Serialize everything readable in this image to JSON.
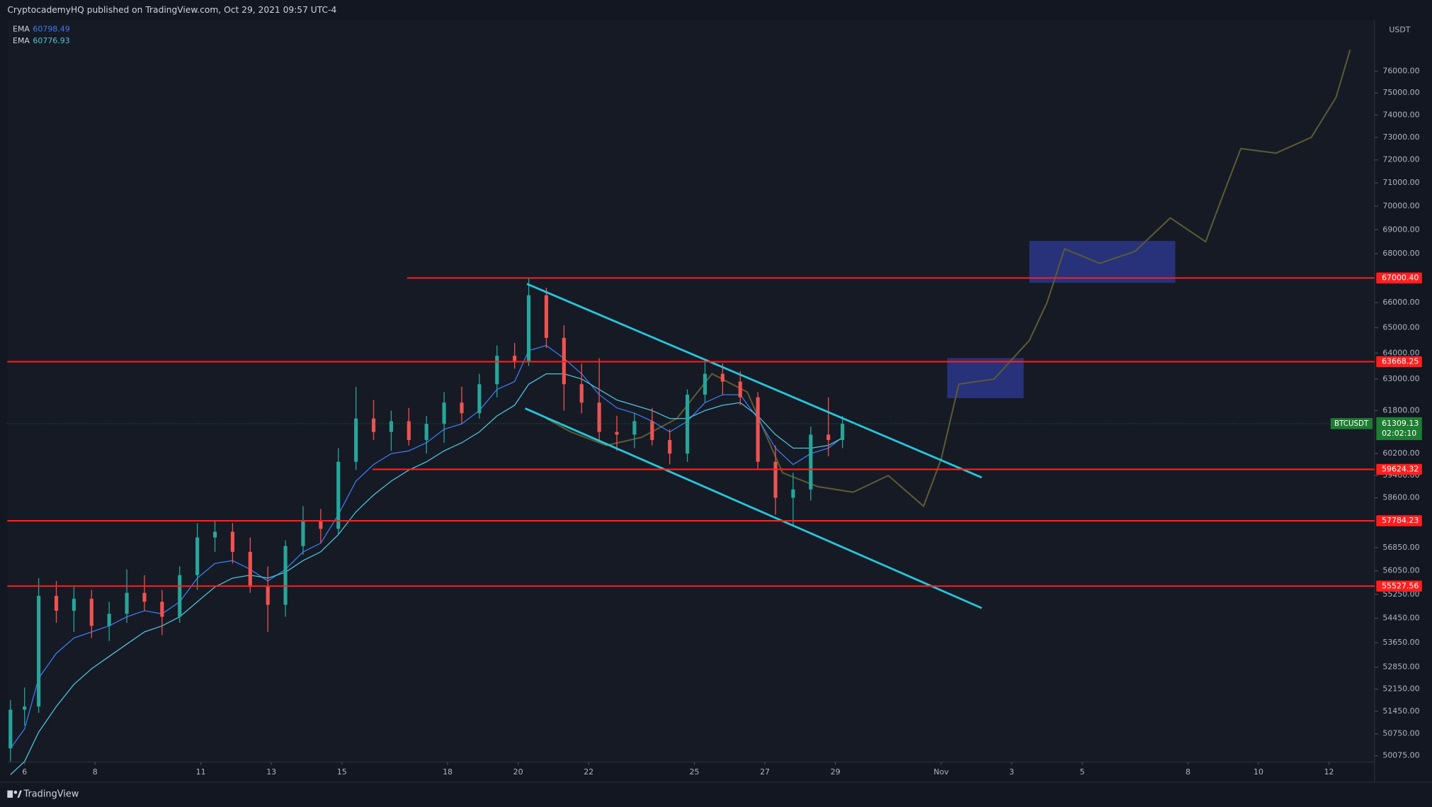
{
  "chart_data": {
    "type": "candlestick",
    "header": "CryptocademyHQ published on TradingView.com, Oct 29, 2021 09:57 UTC-4",
    "brand": "TradingView",
    "currency": "USDT",
    "log": true,
    "xlim": [
      5.51,
      44.29
    ],
    "ylim": [
      49880,
      78400
    ],
    "xticks": [
      6,
      8,
      11,
      13,
      15,
      18,
      20,
      22,
      25,
      27,
      29,
      {
        "value": 32,
        "label": "Nov"
      },
      {
        "value": 34,
        "label": "3"
      },
      {
        "value": 36,
        "label": "5"
      },
      {
        "value": 39,
        "label": "8"
      },
      {
        "value": 41,
        "label": "10"
      },
      {
        "value": 43,
        "label": "12"
      }
    ],
    "yticks": [
      {
        "value": 76000,
        "label": "76000.00"
      },
      {
        "value": 75000,
        "label": "75000.00"
      },
      {
        "value": 74000,
        "label": "74000.00"
      },
      {
        "value": 73000,
        "label": "73000.00"
      },
      {
        "value": 72000,
        "label": "72000.00"
      },
      {
        "value": 71000,
        "label": "71000.00"
      },
      {
        "value": 70000,
        "label": "70000.00"
      },
      {
        "value": 69000,
        "label": "69000.00"
      },
      {
        "value": 68000,
        "label": "68000.00"
      },
      {
        "value": 66000,
        "label": "66000.00"
      },
      {
        "value": 65000,
        "label": "65000.00"
      },
      {
        "value": 64000,
        "label": "64000.00"
      },
      {
        "value": 63000,
        "label": "63000.00"
      },
      {
        "value": 61800,
        "label": "61800.00"
      },
      {
        "value": 60200,
        "label": "60200.00"
      },
      {
        "value": 59400,
        "label": "59400.00"
      },
      {
        "value": 58600,
        "label": "58600.00"
      },
      {
        "value": 56850,
        "label": "56850.00"
      },
      {
        "value": 56050,
        "label": "56050.00"
      },
      {
        "value": 55250,
        "label": "55250.00"
      },
      {
        "value": 54450,
        "label": "54450.00"
      },
      {
        "value": 53650,
        "label": "53650.00"
      },
      {
        "value": 52850,
        "label": "52850.00"
      },
      {
        "value": 52150,
        "label": "52150.00"
      },
      {
        "value": 51450,
        "label": "51450.00"
      },
      {
        "value": 50750,
        "label": "50750.00"
      },
      {
        "value": 50075,
        "label": "50075.00"
      }
    ],
    "up_color": "#26a69a",
    "down_color": "#ef5350",
    "candles": {
      "x": [
        5.6,
        6.0,
        6.4,
        6.9,
        7.4,
        7.9,
        8.4,
        8.9,
        9.4,
        9.9,
        10.4,
        10.9,
        11.4,
        11.9,
        12.4,
        12.9,
        13.4,
        13.9,
        14.4,
        14.9,
        15.4,
        15.9,
        16.4,
        16.9,
        17.4,
        17.9,
        18.4,
        18.9,
        19.4,
        19.9,
        20.3,
        20.8,
        21.3,
        21.8,
        22.3,
        22.8,
        23.3,
        23.8,
        24.3,
        24.8,
        25.3,
        25.8,
        26.3,
        26.8,
        27.3,
        27.8,
        28.3,
        28.8,
        29.2
      ],
      "open": [
        50300,
        51500,
        51600,
        55200,
        54700,
        55100,
        54200,
        54600,
        55300,
        55000,
        54500,
        55900,
        57200,
        57400,
        56700,
        55500,
        54900,
        56900,
        57800,
        57500,
        59900,
        61500,
        61000,
        61400,
        60700,
        61300,
        62100,
        61700,
        62800,
        63900,
        63700,
        66300,
        64600,
        62800,
        62100,
        61000,
        60900,
        61400,
        60700,
        60200,
        62400,
        63200,
        62900,
        62300,
        59900,
        58600,
        58900,
        60900,
        60700
      ],
      "high": [
        51800,
        52200,
        55800,
        55700,
        55500,
        55400,
        55000,
        56100,
        55900,
        55400,
        56200,
        57700,
        57800,
        57700,
        57200,
        56200,
        57100,
        58300,
        58200,
        60400,
        62700,
        62200,
        61800,
        61900,
        61600,
        62500,
        62700,
        63200,
        64300,
        64400,
        67000,
        66600,
        65100,
        63600,
        63800,
        61600,
        61700,
        61900,
        61100,
        62600,
        63700,
        63600,
        63300,
        62500,
        60500,
        59500,
        61200,
        62300,
        61600
      ],
      "low": [
        49900,
        51000,
        51400,
        54300,
        54000,
        53800,
        53700,
        54300,
        54700,
        53900,
        54300,
        55400,
        56700,
        56300,
        55300,
        54000,
        54500,
        56600,
        57000,
        57300,
        59600,
        60700,
        60300,
        60500,
        60200,
        60600,
        61300,
        61500,
        62300,
        63400,
        63500,
        64200,
        61800,
        61700,
        60700,
        60300,
        60400,
        60500,
        59800,
        59900,
        62100,
        62400,
        62000,
        59600,
        58000,
        57600,
        58500,
        60100,
        60400
      ],
      "close": [
        51500,
        51600,
        55200,
        54700,
        55100,
        54200,
        54600,
        55300,
        55000,
        54500,
        55900,
        57200,
        57400,
        56700,
        55500,
        54900,
        56900,
        57800,
        57500,
        59900,
        61500,
        61000,
        61400,
        60700,
        61300,
        62100,
        61700,
        62800,
        63900,
        63700,
        66300,
        64600,
        62800,
        62100,
        61000,
        60900,
        61400,
        60700,
        60200,
        62400,
        63200,
        62900,
        62300,
        59900,
        58600,
        58900,
        60900,
        60700,
        61300
      ]
    },
    "ema": [
      {
        "name": "EMA",
        "last_label": "60798.49",
        "color": "#3b7bf0",
        "values": [
          50300,
          50900,
          52500,
          53300,
          53800,
          54000,
          54200,
          54500,
          54700,
          54600,
          55000,
          55800,
          56300,
          56400,
          56100,
          55700,
          56100,
          56700,
          57000,
          58000,
          59200,
          59800,
          60200,
          60300,
          60600,
          61100,
          61300,
          61800,
          62600,
          62900,
          64100,
          64300,
          63800,
          63200,
          62400,
          61900,
          61700,
          61400,
          61000,
          61400,
          62100,
          62400,
          62400,
          61500,
          60400,
          59800,
          60200,
          60400,
          60800
        ]
      },
      {
        "name": "EMA",
        "last_label": "60776.93",
        "color": "#4fc3d9",
        "values": [
          49500,
          49900,
          50800,
          51600,
          52300,
          52800,
          53200,
          53600,
          54000,
          54200,
          54500,
          55000,
          55500,
          55800,
          55900,
          55800,
          56000,
          56400,
          56700,
          57300,
          58100,
          58700,
          59200,
          59600,
          59900,
          60300,
          60600,
          61000,
          61600,
          62000,
          62800,
          63200,
          63200,
          63000,
          62600,
          62200,
          62000,
          61800,
          61500,
          61500,
          61800,
          62000,
          62100,
          61600,
          60900,
          60400,
          60400,
          60500,
          60780
        ]
      }
    ],
    "projection": {
      "color": "#5b5a33",
      "x": [
        20.8,
        21.5,
        22.5,
        23.5,
        24.5,
        25.5,
        26.5,
        27.5,
        28.5,
        29.5,
        30.5,
        31.5,
        32,
        32.5,
        33.5,
        34.5,
        35,
        35.5,
        36.5,
        37.5,
        38.5,
        39.5,
        40,
        40.5,
        41.5,
        42.5,
        43.2,
        43.6
      ],
      "values": [
        61500,
        61000,
        60500,
        60800,
        61500,
        63200,
        62500,
        59500,
        59000,
        58800,
        59400,
        58300,
        60000,
        62800,
        63000,
        64500,
        66000,
        68200,
        67600,
        68100,
        69500,
        68500,
        70500,
        72500,
        72300,
        73000,
        74800,
        77000
      ]
    },
    "levels_color": "#ff1f1f",
    "levels": [
      {
        "value": 67000.4,
        "label": "67000.40",
        "from": 16.85
      },
      {
        "value": 63668.25,
        "label": "63668.25",
        "from": 5.51
      },
      {
        "value": 59624.32,
        "label": "59624.32",
        "from": 15.87
      },
      {
        "value": 57784.23,
        "label": "57784.23",
        "from": 5.51
      },
      {
        "value": 55527.56,
        "label": "55527.56",
        "from": 5.51
      }
    ],
    "channel_color": "#26c6da",
    "channels": [
      {
        "x": [
          20.25,
          33.15
        ],
        "values": [
          66760,
          59330
        ]
      },
      {
        "x": [
          20.2,
          33.15
        ],
        "values": [
          61880,
          54790
        ]
      }
    ],
    "zones_color": "#2f3d9e",
    "zones": [
      {
        "x": [
          32.17,
          34.34
        ],
        "values": [
          63810,
          62270
        ]
      },
      {
        "x": [
          34.5,
          38.64
        ],
        "values": [
          68530,
          66800
        ]
      }
    ],
    "last_price": {
      "symbol": "BTCUSDT",
      "value": 61309.13,
      "label": "61309.13",
      "countdown": "02:02:10",
      "color": "#1e7d32"
    }
  }
}
